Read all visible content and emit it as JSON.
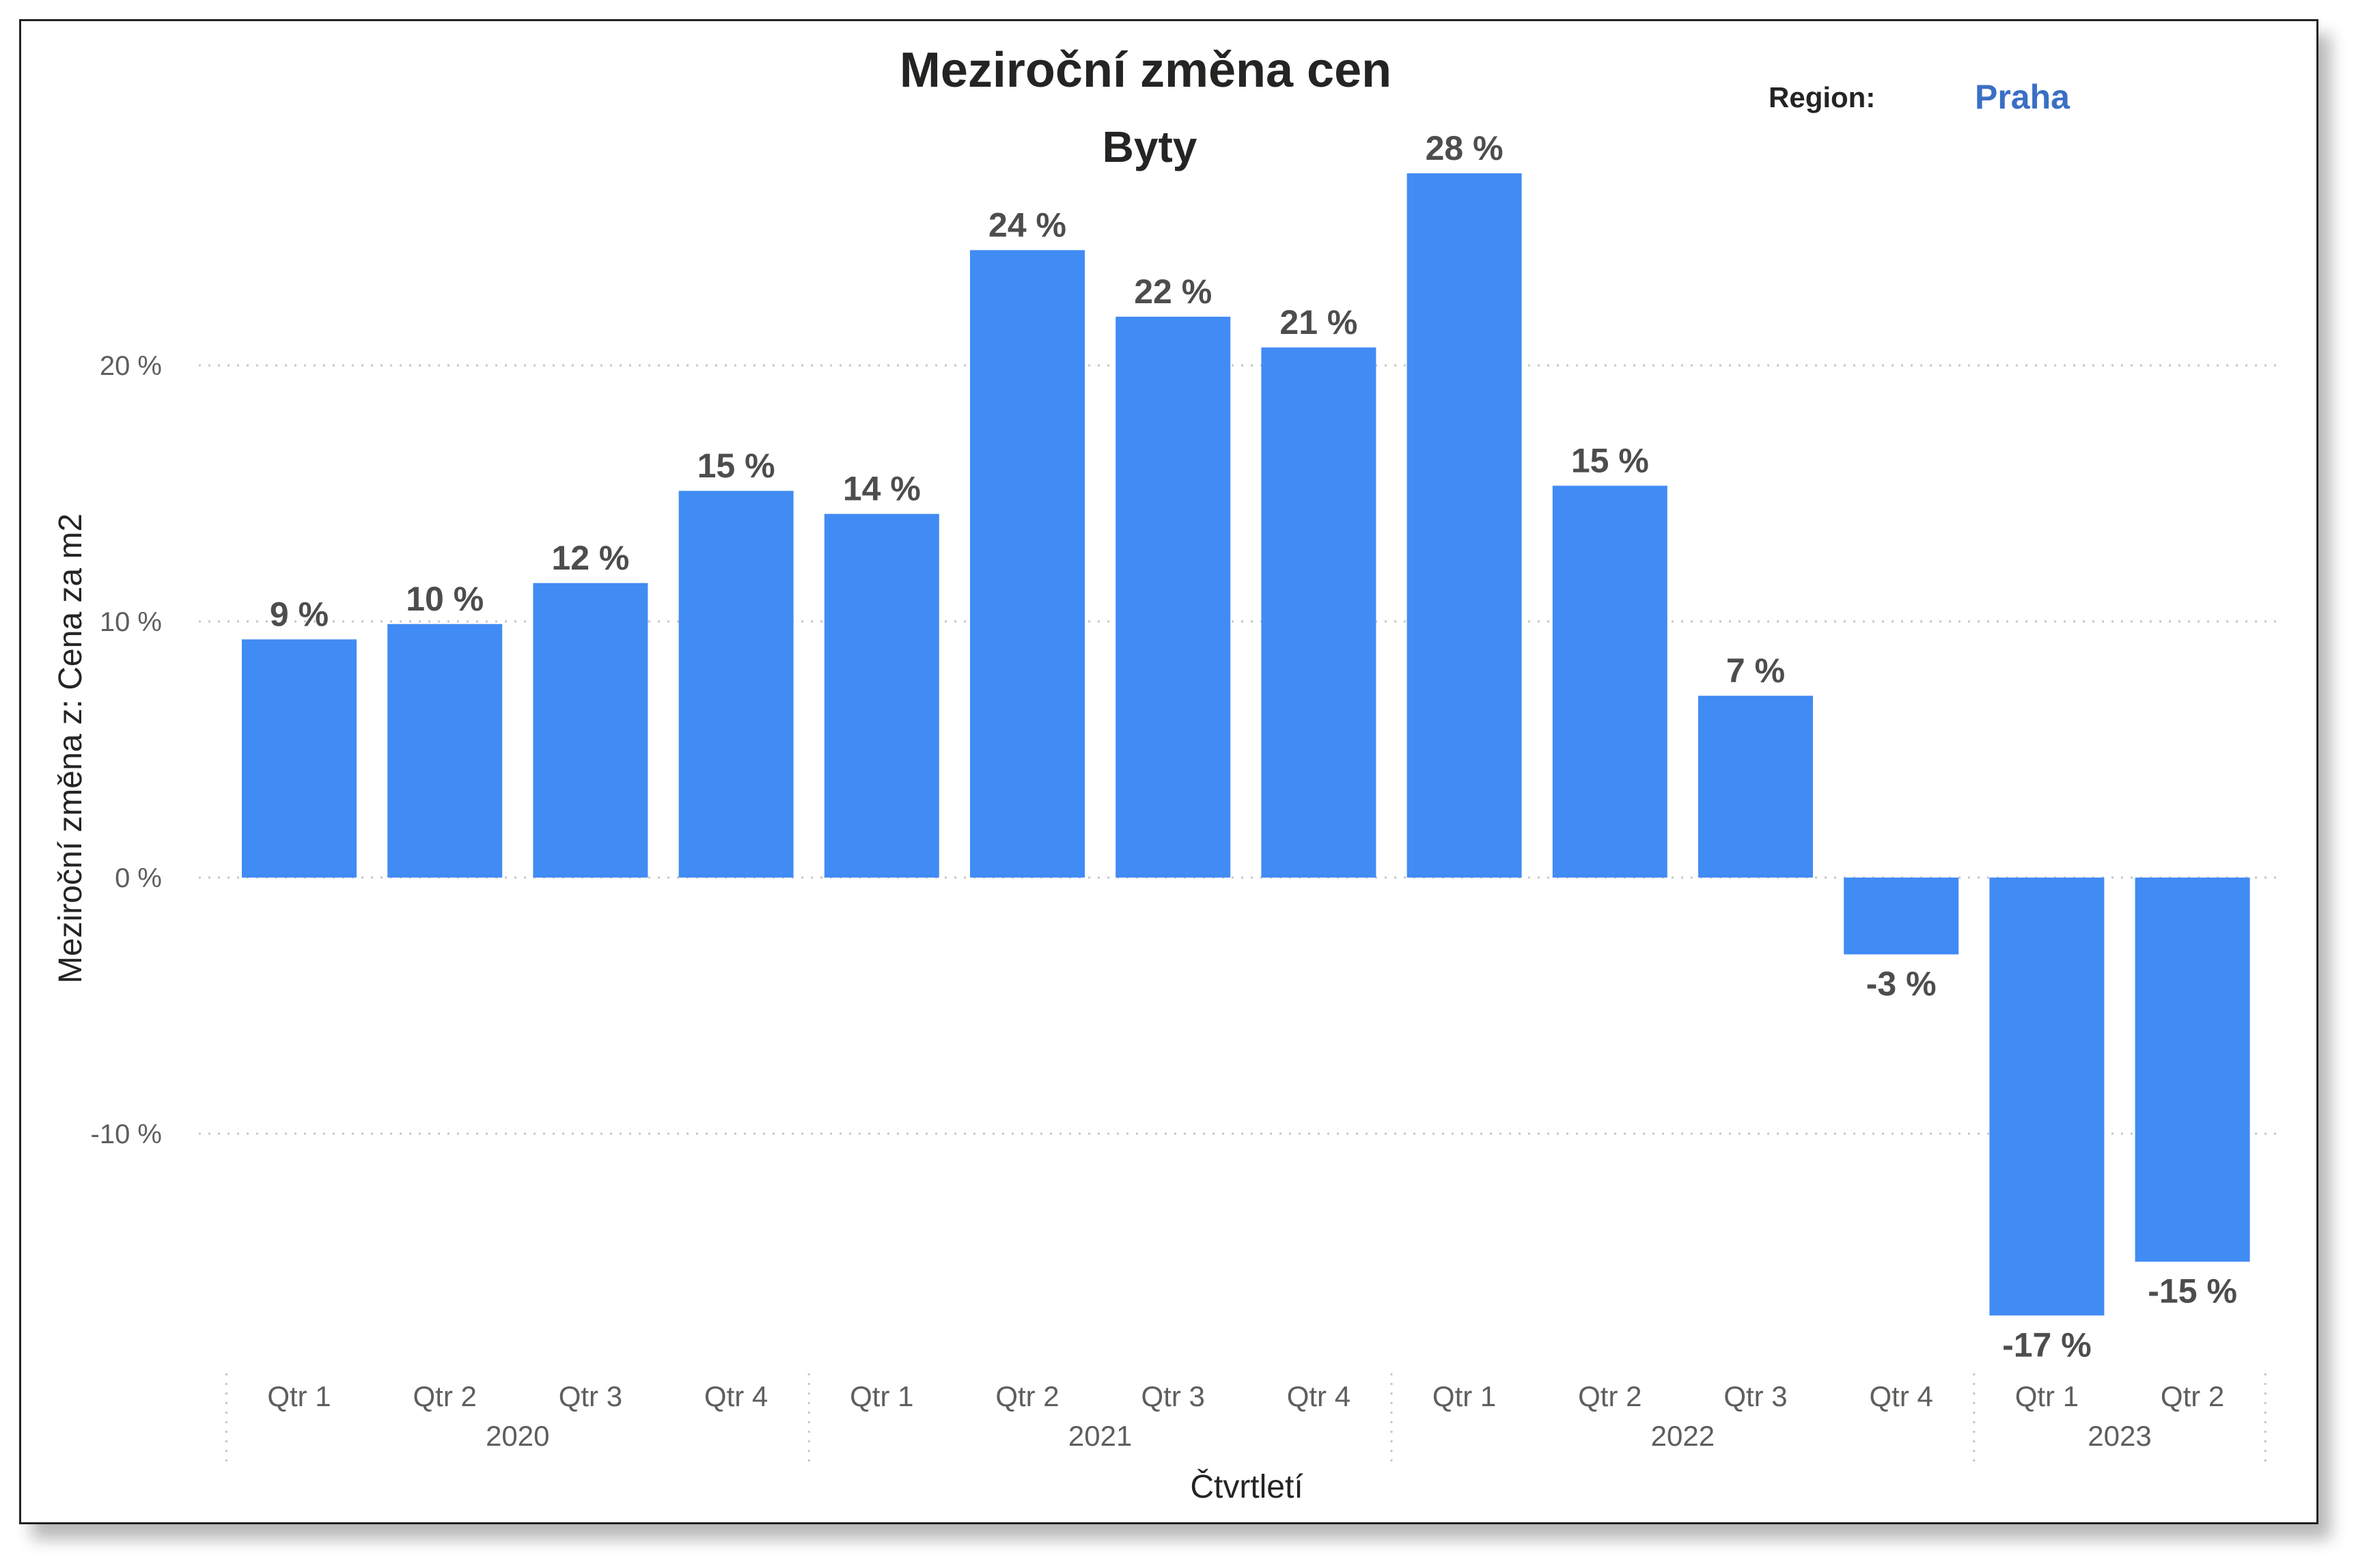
{
  "chart_data": {
    "type": "bar",
    "title": "Meziroční změna cen",
    "subtitle": "Byty",
    "xlabel": "Čtvrtletí",
    "ylabel": "Meziroční změna z: Cena za m2",
    "ylim": [
      -20,
      30
    ],
    "yticks": [
      -10,
      0,
      10,
      20
    ],
    "ytick_labels": [
      "-10 %",
      "0 %",
      "10 %",
      "20 %"
    ],
    "grid": true,
    "categories": [
      "Qtr 1",
      "Qtr 2",
      "Qtr 3",
      "Qtr 4",
      "Qtr 1",
      "Qtr 2",
      "Qtr 3",
      "Qtr 4",
      "Qtr 1",
      "Qtr 2",
      "Qtr 3",
      "Qtr 4",
      "Qtr 1",
      "Qtr 2"
    ],
    "groups": [
      {
        "label": "2020",
        "count": 4
      },
      {
        "label": "2021",
        "count": 4
      },
      {
        "label": "2022",
        "count": 4
      },
      {
        "label": "2023",
        "count": 2
      }
    ],
    "values": [
      9.3,
      9.9,
      11.5,
      15.1,
      14.2,
      24.5,
      21.9,
      20.7,
      27.5,
      15.3,
      7.1,
      -3.0,
      -17.1,
      -15.0
    ],
    "data_labels": [
      "9 %",
      "10 %",
      "12 %",
      "15 %",
      "14 %",
      "24 %",
      "22 %",
      "21 %",
      "28 %",
      "15 %",
      "7 %",
      "-3 %",
      "-17 %",
      "-15 %"
    ],
    "bar_color": "#418bf4"
  },
  "filter": {
    "label": "Region:",
    "value": "Praha"
  },
  "colors": {
    "bar": "#418bf4",
    "grid": "#c8c6c4",
    "region_value": "#3a6fc4"
  }
}
